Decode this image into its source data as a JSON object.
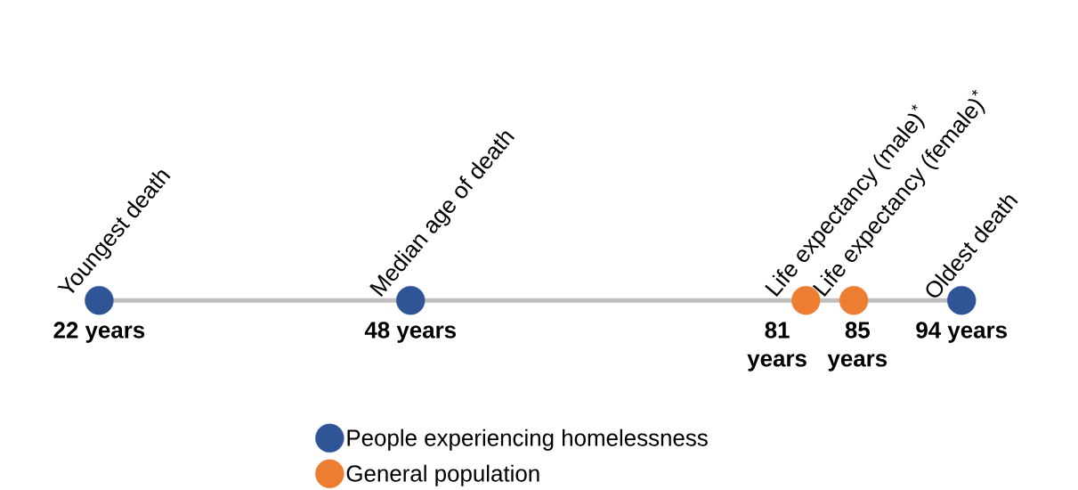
{
  "chart_data": {
    "type": "other",
    "legend": "bottom",
    "categories": [
      "Youngest death",
      "Median age of death",
      "Life expectancy (male)$^{*}$",
      "Life expectancy (female)$^{*}$",
      "Oldest death"
    ],
    "series": [
      {
        "name": "People experiencing homelessness",
        "color": "#2f5597",
        "values": [
          22,
          48,
          null,
          null,
          94
        ],
        "value_labels": [
          "22 years",
          "48 years",
          null,
          null,
          "94 years"
        ]
      },
      {
        "name": "General population",
        "color": "#ed7d31",
        "values": [
          null,
          null,
          81,
          85,
          null
        ],
        "value_labels": [
          null,
          null,
          "81 years",
          "85 years",
          null
        ]
      }
    ]
  }
}
